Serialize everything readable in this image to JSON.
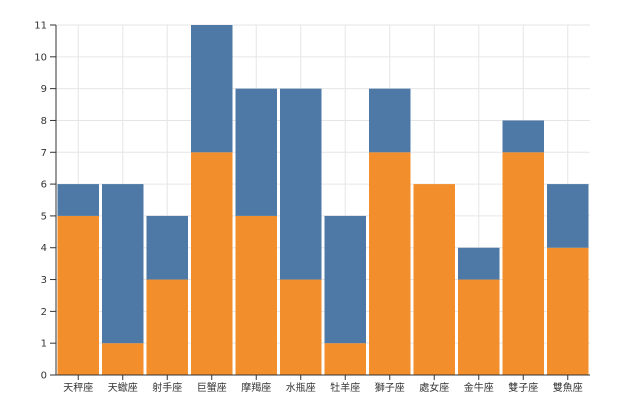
{
  "chart_data": {
    "type": "bar",
    "stacked": true,
    "categories": [
      "天秤座",
      "天蠍座",
      "射手座",
      "巨蟹座",
      "摩羯座",
      "水瓶座",
      "牡羊座",
      "獅子座",
      "處女座",
      "金牛座",
      "雙子座",
      "雙魚座"
    ],
    "series": [
      {
        "color": "#f28e2b",
        "values": [
          5,
          1,
          3,
          7,
          5,
          3,
          1,
          7,
          6,
          3,
          7,
          4
        ]
      },
      {
        "color": "#4e79a7",
        "values": [
          1,
          5,
          2,
          4,
          4,
          6,
          4,
          2,
          0,
          1,
          1,
          2
        ]
      }
    ],
    "ylim": [
      0,
      11
    ],
    "yticks": [
      "0",
      "1",
      "2",
      "3",
      "4",
      "5",
      "6",
      "7",
      "8",
      "9",
      "10",
      "11"
    ],
    "grid": true,
    "legend": "none"
  }
}
